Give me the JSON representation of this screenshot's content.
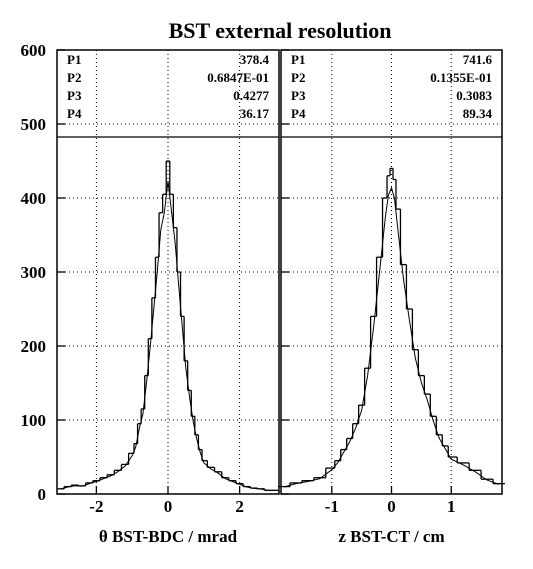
{
  "title": "BST external resolution",
  "y_ticks": [
    "0",
    "100",
    "200",
    "300",
    "400",
    "500",
    "600"
  ],
  "chart_data": [
    {
      "type": "histogram",
      "xlabel": "θ BST-BDC / mrad",
      "ylabel": "",
      "xlim": [
        -3.1,
        3.1
      ],
      "ylim": [
        0,
        600
      ],
      "x_ticks": [
        -2,
        0,
        2
      ],
      "x_tick_labels": [
        "-2",
        "0",
        "2"
      ],
      "grid": true,
      "fit_params": [
        {
          "name": "P1",
          "value": "378.4"
        },
        {
          "name": "P2",
          "value": "0.6847E-01"
        },
        {
          "name": "P3",
          "value": "0.4277"
        },
        {
          "name": "P4",
          "value": "36.17"
        }
      ],
      "bins": {
        "x": [
          -3.0,
          -2.8,
          -2.6,
          -2.4,
          -2.2,
          -2.0,
          -1.8,
          -1.6,
          -1.4,
          -1.2,
          -1.0,
          -0.9,
          -0.8,
          -0.7,
          -0.6,
          -0.5,
          -0.4,
          -0.3,
          -0.2,
          -0.1,
          0.0,
          0.1,
          0.2,
          0.3,
          0.4,
          0.5,
          0.6,
          0.7,
          0.8,
          0.9,
          1.0,
          1.2,
          1.4,
          1.6,
          1.8,
          2.0,
          2.2,
          2.4,
          2.6,
          2.8,
          3.0
        ],
        "y": [
          7,
          10,
          12,
          11,
          15,
          18,
          22,
          26,
          32,
          40,
          55,
          68,
          95,
          115,
          160,
          210,
          265,
          320,
          380,
          405,
          450,
          405,
          360,
          300,
          240,
          180,
          140,
          105,
          80,
          60,
          45,
          36,
          30,
          22,
          18,
          14,
          10,
          8,
          7,
          5,
          5
        ]
      },
      "fit_curve": true
    },
    {
      "type": "histogram",
      "xlabel": "z  BST-CT / cm",
      "ylabel": "",
      "xlim": [
        -1.85,
        1.85
      ],
      "ylim": [
        0,
        600
      ],
      "x_ticks": [
        -1,
        0,
        1
      ],
      "x_tick_labels": [
        "-1",
        "0",
        "1"
      ],
      "grid": true,
      "fit_params": [
        {
          "name": "P1",
          "value": "741.6"
        },
        {
          "name": "P2",
          "value": "0.1355E-01"
        },
        {
          "name": "P3",
          "value": "0.3083"
        },
        {
          "name": "P4",
          "value": "89.34"
        }
      ],
      "bins": {
        "x": [
          -1.8,
          -1.6,
          -1.4,
          -1.2,
          -1.0,
          -0.9,
          -0.8,
          -0.7,
          -0.6,
          -0.5,
          -0.4,
          -0.3,
          -0.2,
          -0.1,
          -0.05,
          0.0,
          0.05,
          0.1,
          0.2,
          0.3,
          0.4,
          0.5,
          0.6,
          0.7,
          0.8,
          0.9,
          1.0,
          1.2,
          1.4,
          1.6,
          1.8
        ],
        "y": [
          10,
          15,
          18,
          22,
          35,
          45,
          60,
          75,
          95,
          120,
          170,
          240,
          320,
          400,
          430,
          440,
          425,
          385,
          310,
          250,
          195,
          160,
          135,
          105,
          80,
          65,
          50,
          42,
          32,
          20,
          14
        ]
      },
      "fit_curve": true
    }
  ]
}
